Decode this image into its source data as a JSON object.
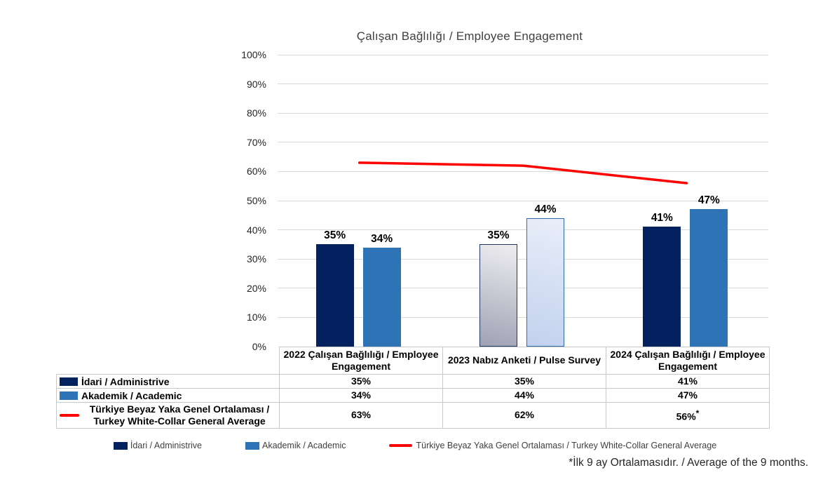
{
  "chart_data": {
    "type": "bar",
    "title": "Çalışan Bağlılığı / Employee Engagement",
    "categories": [
      "2022 Çalışan Bağlılığı / Employee Engagement",
      "2023 Nabız Anketi / Pulse Survey",
      "2024 Çalışan Bağlılığı / Employee Engagement"
    ],
    "series": [
      {
        "name": "İdari / Administrive",
        "render": "bar",
        "values": [
          35,
          35,
          41
        ],
        "labels": [
          "35%",
          "35%",
          "41%"
        ],
        "color_key": "navy"
      },
      {
        "name": "Akademik / Academic",
        "render": "bar",
        "values": [
          34,
          44,
          47
        ],
        "labels": [
          "34%",
          "44%",
          "47%"
        ],
        "color_key": "blue"
      },
      {
        "name": "Türkiye Beyaz Yaka Genel Ortalaması / Turkey White-Collar General Average",
        "render": "line",
        "values": [
          63,
          62,
          56
        ],
        "color_key": "red"
      }
    ],
    "ylim": [
      0,
      100
    ],
    "ytick_step": 10,
    "yticks": [
      "0%",
      "10%",
      "20%",
      "30%",
      "40%",
      "50%",
      "60%",
      "70%",
      "80%",
      "90%",
      "100%"
    ],
    "grid": true,
    "legend_position": "bottom",
    "special_group": {
      "index": 1,
      "note": "2023 pulse-survey bars drawn with gradient fill and outline",
      "fills": [
        {
          "top": "#eeeef1",
          "bottom": "#a0a1b4",
          "border": "#1f3864"
        },
        {
          "top": "#e9eef9",
          "bottom": "#c2d1ee",
          "border": "#2d6dad"
        }
      ]
    }
  },
  "colors": {
    "navy": "#03215f",
    "blue": "#2e73b5",
    "red": "#ff0000",
    "grid": "#d9d9d9",
    "table_border": "#c8c8c8"
  },
  "table": {
    "rows": [
      {
        "swatch": "navy",
        "swatch_type": "rect",
        "label": "İdari / Administrive",
        "values": [
          "35%",
          "35%",
          "41%"
        ],
        "sups": [
          "",
          "",
          ""
        ]
      },
      {
        "swatch": "blue",
        "swatch_type": "rect",
        "label": "Akademik / Academic",
        "values": [
          "34%",
          "44%",
          "47%"
        ],
        "sups": [
          "",
          "",
          ""
        ]
      },
      {
        "swatch": "red",
        "swatch_type": "line",
        "label": "Türkiye Beyaz Yaka Genel Ortalaması /",
        "label_line2": "Turkey White-Collar General Average",
        "values": [
          "63%",
          "62%",
          "56%"
        ],
        "sups": [
          "",
          "",
          "*"
        ]
      }
    ]
  },
  "legend": {
    "items": [
      {
        "swatch": "navy",
        "type": "rect",
        "label": "İdari / Administrive"
      },
      {
        "swatch": "blue",
        "type": "rect",
        "label": "Akademik / Academic"
      },
      {
        "swatch": "red",
        "type": "line",
        "label": "Türkiye Beyaz Yaka Genel Ortalaması / Turkey White-Collar General Average"
      }
    ]
  },
  "footnote": "*İlk 9 ay Ortalamasıdır. / Average of the 9 months."
}
